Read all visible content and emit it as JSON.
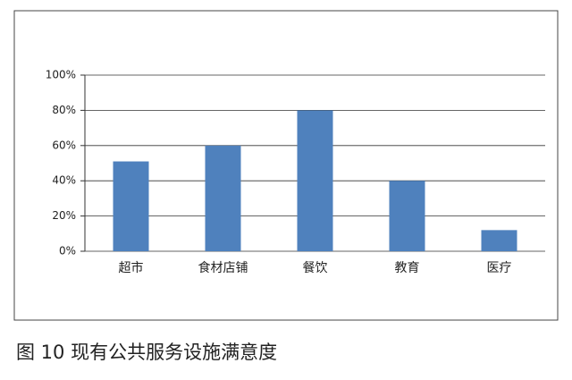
{
  "chart_data": {
    "type": "bar",
    "title": "图 10 现有公共服务设施满意度",
    "categories": [
      "超市",
      "食材店铺",
      "餐饮",
      "教育",
      "医疗"
    ],
    "values": [
      51,
      60,
      80,
      40,
      12
    ],
    "color": "#4f81bd",
    "ylim": [
      0,
      100
    ],
    "yticks": [
      {
        "value": 0,
        "label": "0%"
      },
      {
        "value": 20,
        "label": "20%"
      },
      {
        "value": 40,
        "label": "40%"
      },
      {
        "value": 60,
        "label": "60%"
      },
      {
        "value": 80,
        "label": "80%"
      },
      {
        "value": 100,
        "label": "100%"
      }
    ],
    "grid": true
  }
}
